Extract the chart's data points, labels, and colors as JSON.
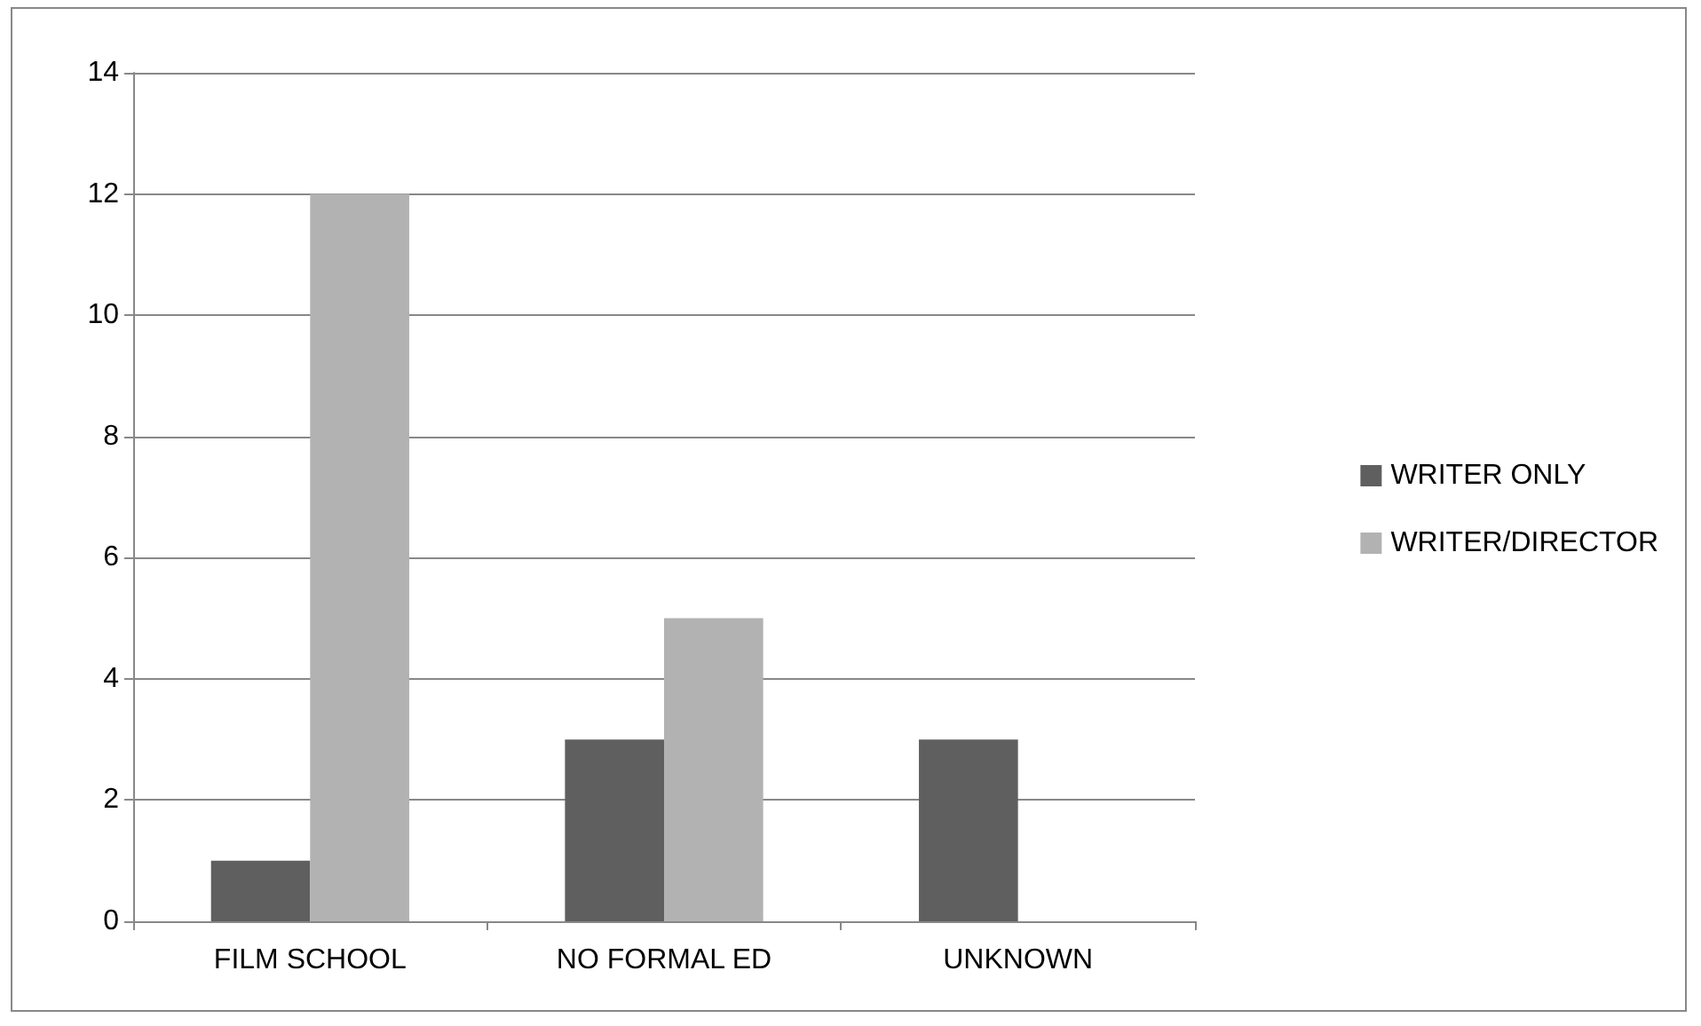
{
  "chart_data": {
    "type": "bar",
    "categories": [
      "FILM SCHOOL",
      "NO FORMAL ED",
      "UNKNOWN"
    ],
    "series": [
      {
        "name": "WRITER ONLY",
        "color": "#5f5f5f",
        "values": [
          1,
          3,
          3
        ]
      },
      {
        "name": "WRITER/DIRECTOR",
        "color": "#b2b2b2",
        "values": [
          12,
          5,
          0
        ]
      }
    ],
    "ylim": [
      0,
      14
    ],
    "yticks": [
      0,
      2,
      4,
      6,
      8,
      10,
      12,
      14
    ],
    "grid": "y",
    "legend": "right"
  }
}
